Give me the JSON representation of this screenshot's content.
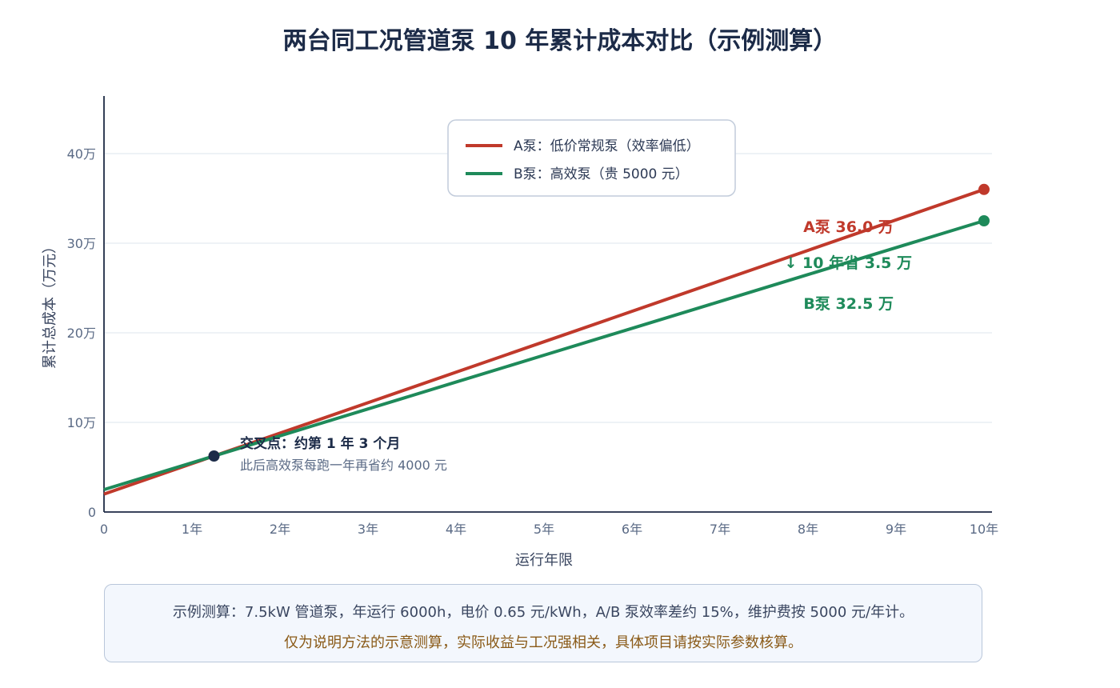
{
  "title": "两台同工况管道泵 10 年累计成本对比（示例测算）",
  "chart_data": {
    "type": "line",
    "x": [
      0,
      1,
      2,
      3,
      4,
      5,
      6,
      7,
      8,
      9,
      10
    ],
    "series": [
      {
        "name": "A泵：低价常规泵（效率偏低）",
        "color": "#c0392b",
        "values": [
          2.0,
          5.4,
          8.8,
          12.2,
          15.6,
          19.0,
          22.4,
          25.8,
          29.2,
          32.6,
          36.0
        ]
      },
      {
        "name": "B泵：高效泵（贵 5000 元）",
        "color": "#1e8a5a",
        "values": [
          2.5,
          5.5,
          8.5,
          11.5,
          14.5,
          17.5,
          20.5,
          23.5,
          26.5,
          29.5,
          32.5
        ]
      }
    ],
    "xlim": [
      0,
      10
    ],
    "ylim": [
      0,
      50
    ],
    "xticks": [
      {
        "v": 0,
        "label": "0"
      },
      {
        "v": 1,
        "label": "1年"
      },
      {
        "v": 2,
        "label": "2年"
      },
      {
        "v": 3,
        "label": "3年"
      },
      {
        "v": 4,
        "label": "4年"
      },
      {
        "v": 5,
        "label": "5年"
      },
      {
        "v": 6,
        "label": "6年"
      },
      {
        "v": 7,
        "label": "7年"
      },
      {
        "v": 8,
        "label": "8年"
      },
      {
        "v": 9,
        "label": "9年"
      },
      {
        "v": 10,
        "label": "10年"
      }
    ],
    "yticks": [
      {
        "v": 0,
        "label": "0"
      },
      {
        "v": 10,
        "label": "10万"
      },
      {
        "v": 20,
        "label": "20万"
      },
      {
        "v": 30,
        "label": "30万"
      },
      {
        "v": 40,
        "label": "40万"
      }
    ],
    "xlabel": "运行年限",
    "ylabel": "累计总成本（万元）",
    "grid": true,
    "legend_position": "top-center",
    "crossover": {
      "x": 1.25,
      "y": 6.25,
      "title": "交叉点：约第 1 年 3 个月",
      "subtitle": "此后高效泵每跑一年再省约 4000 元"
    },
    "end_labels": {
      "a": "A泵 36.0 万",
      "b": "B泵 32.5 万",
      "saving": "↓ 10 年省 3.5 万"
    }
  },
  "note": {
    "line1": "示例测算：7.5kW 管道泵，年运行 6000h，电价 0.65 元/kWh，A/B 泵效率差约 15%，维护费按 5000 元/年计。",
    "line2": "仅为说明方法的示意测算，实际收益与工况强相关，具体项目请按实际参数核算。"
  }
}
